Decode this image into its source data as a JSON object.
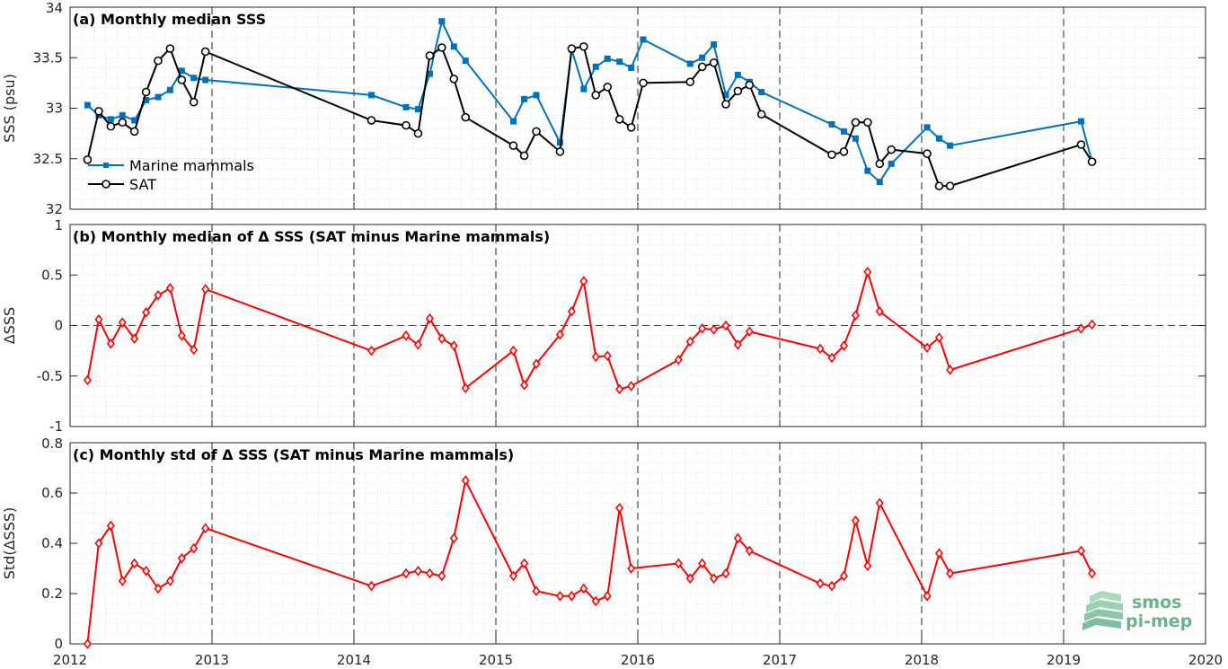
{
  "chart_data": [
    {
      "type": "line",
      "title": "(a) Monthly median SSS",
      "xlabel": "",
      "ylabel": "SSS (psu)",
      "xlim": [
        "2012-01-01",
        "2020-01-01"
      ],
      "ylim": [
        32,
        34
      ],
      "x_ticks": [
        "2012",
        "2013",
        "2014",
        "2015",
        "2016",
        "2017",
        "2018",
        "2019",
        "2020"
      ],
      "y_ticks": [
        "32",
        "32.5",
        "33",
        "33.5",
        "34"
      ],
      "grid": "minor dotted, dashed year lines",
      "legend_position": "bottom-left",
      "series": [
        {
          "name": "Marine mammals",
          "color": "#0072BD",
          "marker": "square",
          "x": [
            "2012-02-15",
            "2012-03-15",
            "2012-04-15",
            "2012-05-15",
            "2012-06-15",
            "2012-07-15",
            "2012-08-15",
            "2012-09-15",
            "2012-10-15",
            "2012-11-15",
            "2012-12-15",
            "2014-02-15",
            "2014-05-15",
            "2014-06-15",
            "2014-07-15",
            "2014-08-15",
            "2014-09-15",
            "2014-10-15",
            "2015-02-15",
            "2015-03-15",
            "2015-04-15",
            "2015-06-15",
            "2015-07-15",
            "2015-08-15",
            "2015-09-15",
            "2015-10-15",
            "2015-11-15",
            "2015-12-15",
            "2016-01-15",
            "2016-05-15",
            "2016-06-15",
            "2016-07-15",
            "2016-08-15",
            "2016-09-15",
            "2016-10-15",
            "2016-11-15",
            "2017-05-15",
            "2017-06-15",
            "2017-07-15",
            "2017-08-15",
            "2017-09-15",
            "2017-10-15",
            "2018-01-15",
            "2018-02-15",
            "2018-03-15",
            "2019-02-15",
            "2019-03-15"
          ],
          "values": [
            33.03,
            32.93,
            32.89,
            32.93,
            32.88,
            33.08,
            33.11,
            33.18,
            33.37,
            33.3,
            33.28,
            33.13,
            33.01,
            32.99,
            33.34,
            33.86,
            33.61,
            33.47,
            32.87,
            33.09,
            33.13,
            32.66,
            33.58,
            33.19,
            33.41,
            33.49,
            33.46,
            33.4,
            33.68,
            33.44,
            33.5,
            33.63,
            33.13,
            33.33,
            33.26,
            33.16,
            32.84,
            32.77,
            32.7,
            32.38,
            32.27,
            32.45,
            32.81,
            32.7,
            32.63,
            32.87,
            32.47
          ]
        },
        {
          "name": "SAT",
          "color": "#000000",
          "marker": "circle",
          "x": [
            "2012-02-15",
            "2012-03-15",
            "2012-04-15",
            "2012-05-15",
            "2012-06-15",
            "2012-07-15",
            "2012-08-15",
            "2012-09-15",
            "2012-10-15",
            "2012-11-15",
            "2012-12-15",
            "2014-02-15",
            "2014-05-15",
            "2014-06-15",
            "2014-07-15",
            "2014-08-15",
            "2014-09-15",
            "2014-10-15",
            "2015-02-15",
            "2015-03-15",
            "2015-04-15",
            "2015-06-15",
            "2015-07-15",
            "2015-08-15",
            "2015-09-15",
            "2015-10-15",
            "2015-11-15",
            "2015-12-15",
            "2016-01-15",
            "2016-05-15",
            "2016-06-15",
            "2016-07-15",
            "2016-08-15",
            "2016-09-15",
            "2016-10-15",
            "2016-11-15",
            "2017-05-15",
            "2017-06-15",
            "2017-07-15",
            "2017-08-15",
            "2017-09-15",
            "2017-10-15",
            "2018-01-15",
            "2018-02-15",
            "2018-03-15",
            "2019-02-15",
            "2019-03-15"
          ],
          "values": [
            32.49,
            32.97,
            32.82,
            32.86,
            32.77,
            33.16,
            33.47,
            33.59,
            33.28,
            33.06,
            33.56,
            32.88,
            32.83,
            32.75,
            33.52,
            33.6,
            33.29,
            32.91,
            32.63,
            32.53,
            32.77,
            32.57,
            33.59,
            33.61,
            33.13,
            33.21,
            32.89,
            32.81,
            33.25,
            33.26,
            33.41,
            33.45,
            33.04,
            33.17,
            33.23,
            32.94,
            32.54,
            32.57,
            32.86,
            32.86,
            32.45,
            32.59,
            32.55,
            32.23,
            32.23,
            32.64,
            32.47
          ]
        }
      ]
    },
    {
      "type": "line",
      "title": "(b) Monthly median of Δ SSS (SAT minus Marine mammals)",
      "xlabel": "",
      "ylabel": "ΔSSS",
      "xlim": [
        "2012-01-01",
        "2020-01-01"
      ],
      "ylim": [
        -1,
        1
      ],
      "y_ticks": [
        "-1",
        "-0.5",
        "0",
        "0.5",
        "1"
      ],
      "reference_line": 0,
      "series": [
        {
          "color": "#FF0000",
          "marker": "diamond",
          "x": [
            "2012-02-15",
            "2012-03-15",
            "2012-04-15",
            "2012-05-15",
            "2012-06-15",
            "2012-07-15",
            "2012-08-15",
            "2012-09-15",
            "2012-10-15",
            "2012-11-15",
            "2012-12-15",
            "2014-02-15",
            "2014-05-15",
            "2014-06-15",
            "2014-07-15",
            "2014-08-15",
            "2014-09-15",
            "2014-10-15",
            "2015-02-15",
            "2015-03-15",
            "2015-04-15",
            "2015-06-15",
            "2015-07-15",
            "2015-08-15",
            "2015-09-15",
            "2015-10-15",
            "2015-11-15",
            "2015-12-15",
            "2016-04-15",
            "2016-05-15",
            "2016-06-15",
            "2016-07-15",
            "2016-08-15",
            "2016-09-15",
            "2016-10-15",
            "2017-04-15",
            "2017-05-15",
            "2017-06-15",
            "2017-07-15",
            "2017-08-15",
            "2017-09-15",
            "2018-01-15",
            "2018-02-15",
            "2018-03-15",
            "2019-02-15",
            "2019-03-15"
          ],
          "values": [
            -0.54,
            0.06,
            -0.18,
            0.03,
            -0.13,
            0.13,
            0.3,
            0.37,
            -0.1,
            -0.24,
            0.36,
            -0.25,
            -0.1,
            -0.19,
            0.07,
            -0.13,
            -0.2,
            -0.62,
            -0.25,
            -0.59,
            -0.38,
            -0.09,
            0.14,
            0.44,
            -0.31,
            -0.3,
            -0.63,
            -0.6,
            -0.34,
            -0.16,
            -0.03,
            -0.04,
            0.0,
            -0.19,
            -0.06,
            -0.23,
            -0.32,
            -0.2,
            0.1,
            0.53,
            0.14,
            -0.22,
            -0.12,
            -0.44,
            -0.03,
            0.01
          ]
        }
      ]
    },
    {
      "type": "line",
      "title": "(c) Monthly std of Δ SSS (SAT minus Marine mammals)",
      "xlabel": "",
      "ylabel": "Std(ΔSSS)",
      "xlim": [
        "2012-01-01",
        "2020-01-01"
      ],
      "ylim": [
        0,
        0.8
      ],
      "y_ticks": [
        "0",
        "0.2",
        "0.4",
        "0.6",
        "0.8"
      ],
      "series": [
        {
          "color": "#FF0000",
          "marker": "diamond",
          "x": [
            "2012-02-15",
            "2012-03-15",
            "2012-04-15",
            "2012-05-15",
            "2012-06-15",
            "2012-07-15",
            "2012-08-15",
            "2012-09-15",
            "2012-10-15",
            "2012-11-15",
            "2012-12-15",
            "2014-02-15",
            "2014-05-15",
            "2014-06-15",
            "2014-07-15",
            "2014-08-15",
            "2014-09-15",
            "2014-10-15",
            "2015-02-15",
            "2015-03-15",
            "2015-04-15",
            "2015-06-15",
            "2015-07-15",
            "2015-08-15",
            "2015-09-15",
            "2015-10-15",
            "2015-11-15",
            "2015-12-15",
            "2016-04-15",
            "2016-05-15",
            "2016-06-15",
            "2016-07-15",
            "2016-08-15",
            "2016-09-15",
            "2016-10-15",
            "2017-04-15",
            "2017-05-15",
            "2017-06-15",
            "2017-07-15",
            "2017-08-15",
            "2017-09-15",
            "2018-01-15",
            "2018-02-15",
            "2018-03-15",
            "2019-02-15",
            "2019-03-15"
          ],
          "values": [
            0.0,
            0.4,
            0.47,
            0.25,
            0.32,
            0.29,
            0.22,
            0.25,
            0.34,
            0.38,
            0.46,
            0.23,
            0.28,
            0.29,
            0.28,
            0.27,
            0.42,
            0.65,
            0.27,
            0.32,
            0.21,
            0.19,
            0.19,
            0.22,
            0.17,
            0.19,
            0.54,
            0.3,
            0.32,
            0.26,
            0.32,
            0.26,
            0.28,
            0.42,
            0.37,
            0.24,
            0.23,
            0.27,
            0.49,
            0.31,
            0.56,
            0.19,
            0.36,
            0.28,
            0.37,
            0.28
          ]
        }
      ]
    }
  ],
  "logo": {
    "line1": "smos",
    "line2": "pi-mep",
    "color": "#5aa882"
  }
}
